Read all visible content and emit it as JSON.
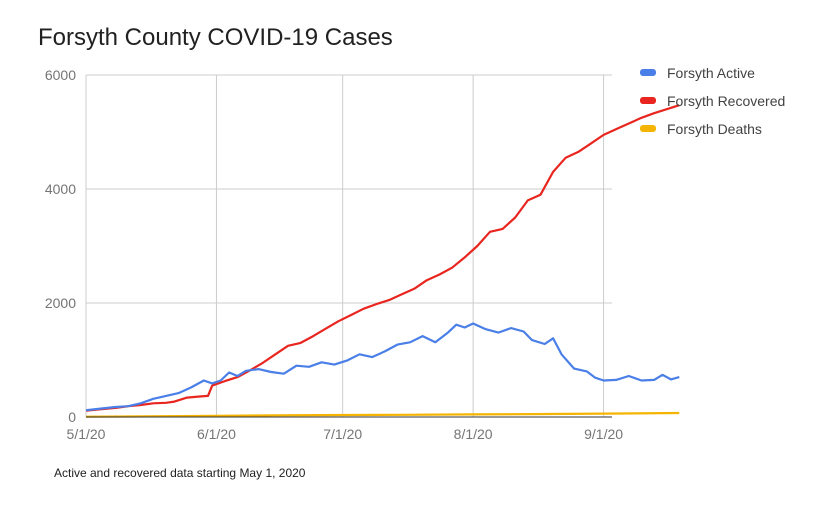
{
  "title": "Forsyth County COVID-19 Cases",
  "caption": "Active and recovered data starting May 1, 2020",
  "chart_data": {
    "type": "line",
    "title": "Forsyth County COVID-19 Cases",
    "xlabel": "",
    "ylabel": "",
    "x_ticks": [
      "5/1/20",
      "6/1/20",
      "7/1/20",
      "8/1/20",
      "9/1/20"
    ],
    "y_ticks": [
      "0",
      "2000",
      "4000",
      "6000"
    ],
    "ylim": [
      0,
      6000
    ],
    "x_start": "2020-05-01",
    "x_end": "2020-09-03",
    "grid": true,
    "legend_position": "right",
    "series": [
      {
        "name": "Forsyth Active",
        "color": "#4a7fe8",
        "points": [
          [
            "2020-05-01",
            120
          ],
          [
            "2020-05-05",
            150
          ],
          [
            "2020-05-08",
            175
          ],
          [
            "2020-05-11",
            190
          ],
          [
            "2020-05-14",
            240
          ],
          [
            "2020-05-17",
            320
          ],
          [
            "2020-05-20",
            370
          ],
          [
            "2020-05-23",
            420
          ],
          [
            "2020-05-26",
            520
          ],
          [
            "2020-05-29",
            640
          ],
          [
            "2020-05-31",
            590
          ],
          [
            "2020-06-02",
            640
          ],
          [
            "2020-06-04",
            780
          ],
          [
            "2020-06-06",
            720
          ],
          [
            "2020-06-08",
            810
          ],
          [
            "2020-06-11",
            840
          ],
          [
            "2020-06-14",
            790
          ],
          [
            "2020-06-17",
            760
          ],
          [
            "2020-06-20",
            900
          ],
          [
            "2020-06-23",
            880
          ],
          [
            "2020-06-26",
            960
          ],
          [
            "2020-06-29",
            920
          ],
          [
            "2020-07-02",
            990
          ],
          [
            "2020-07-05",
            1100
          ],
          [
            "2020-07-08",
            1050
          ],
          [
            "2020-07-11",
            1150
          ],
          [
            "2020-07-14",
            1270
          ],
          [
            "2020-07-17",
            1310
          ],
          [
            "2020-07-20",
            1420
          ],
          [
            "2020-07-23",
            1310
          ],
          [
            "2020-07-26",
            1480
          ],
          [
            "2020-07-28",
            1620
          ],
          [
            "2020-07-30",
            1570
          ],
          [
            "2020-08-01",
            1640
          ],
          [
            "2020-08-04",
            1540
          ],
          [
            "2020-08-07",
            1480
          ],
          [
            "2020-08-10",
            1560
          ],
          [
            "2020-08-13",
            1500
          ],
          [
            "2020-08-15",
            1350
          ],
          [
            "2020-08-18",
            1280
          ],
          [
            "2020-08-20",
            1380
          ],
          [
            "2020-08-22",
            1100
          ],
          [
            "2020-08-25",
            850
          ],
          [
            "2020-08-28",
            800
          ],
          [
            "2020-08-30",
            690
          ],
          [
            "2020-09-01",
            640
          ],
          [
            "2020-09-04",
            650
          ],
          [
            "2020-09-07",
            720
          ],
          [
            "2020-09-10",
            640
          ],
          [
            "2020-09-13",
            650
          ],
          [
            "2020-09-15",
            740
          ],
          [
            "2020-09-17",
            660
          ],
          [
            "2020-09-19",
            700
          ]
        ]
      },
      {
        "name": "Forsyth Recovered",
        "color": "#e8261f",
        "points": [
          [
            "2020-05-01",
            110
          ],
          [
            "2020-05-05",
            140
          ],
          [
            "2020-05-08",
            160
          ],
          [
            "2020-05-11",
            190
          ],
          [
            "2020-05-14",
            210
          ],
          [
            "2020-05-17",
            240
          ],
          [
            "2020-05-20",
            250
          ],
          [
            "2020-05-22",
            270
          ],
          [
            "2020-05-25",
            340
          ],
          [
            "2020-05-28",
            360
          ],
          [
            "2020-05-30",
            370
          ],
          [
            "2020-05-31",
            550
          ],
          [
            "2020-06-03",
            630
          ],
          [
            "2020-06-06",
            700
          ],
          [
            "2020-06-09",
            820
          ],
          [
            "2020-06-12",
            950
          ],
          [
            "2020-06-15",
            1100
          ],
          [
            "2020-06-18",
            1250
          ],
          [
            "2020-06-21",
            1300
          ],
          [
            "2020-06-24",
            1420
          ],
          [
            "2020-06-27",
            1550
          ],
          [
            "2020-06-30",
            1680
          ],
          [
            "2020-07-03",
            1790
          ],
          [
            "2020-07-06",
            1900
          ],
          [
            "2020-07-09",
            1980
          ],
          [
            "2020-07-12",
            2050
          ],
          [
            "2020-07-15",
            2150
          ],
          [
            "2020-07-18",
            2250
          ],
          [
            "2020-07-21",
            2400
          ],
          [
            "2020-07-24",
            2500
          ],
          [
            "2020-07-27",
            2620
          ],
          [
            "2020-07-30",
            2800
          ],
          [
            "2020-08-02",
            3000
          ],
          [
            "2020-08-05",
            3250
          ],
          [
            "2020-08-08",
            3300
          ],
          [
            "2020-08-11",
            3500
          ],
          [
            "2020-08-14",
            3800
          ],
          [
            "2020-08-17",
            3900
          ],
          [
            "2020-08-20",
            4300
          ],
          [
            "2020-08-23",
            4550
          ],
          [
            "2020-08-26",
            4650
          ],
          [
            "2020-08-29",
            4800
          ],
          [
            "2020-09-01",
            4950
          ],
          [
            "2020-09-04",
            5050
          ],
          [
            "2020-09-07",
            5150
          ],
          [
            "2020-09-10",
            5250
          ],
          [
            "2020-09-13",
            5330
          ],
          [
            "2020-09-16",
            5400
          ],
          [
            "2020-09-19",
            5470
          ]
        ]
      },
      {
        "name": "Forsyth Deaths",
        "color": "#f5b400",
        "points": [
          [
            "2020-05-01",
            5
          ],
          [
            "2020-05-15",
            10
          ],
          [
            "2020-06-01",
            20
          ],
          [
            "2020-06-15",
            30
          ],
          [
            "2020-07-01",
            35
          ],
          [
            "2020-07-15",
            38
          ],
          [
            "2020-08-01",
            45
          ],
          [
            "2020-08-15",
            50
          ],
          [
            "2020-09-01",
            60
          ],
          [
            "2020-09-19",
            70
          ]
        ]
      }
    ]
  }
}
